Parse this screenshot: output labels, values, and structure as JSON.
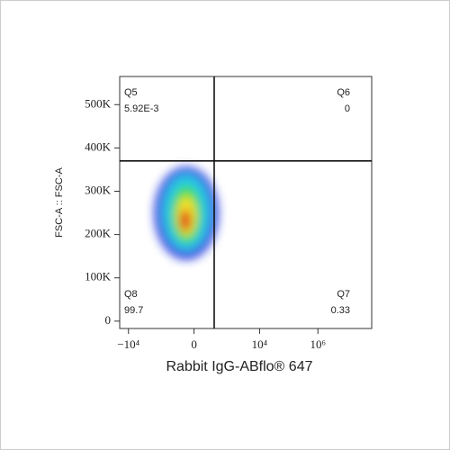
{
  "chart_data": {
    "type": "scatter",
    "xlabel": "Rabbit IgG-ABflo® 647",
    "ylabel": "FSC-A :: FSC-A",
    "xscale": "asinh",
    "xlim": [
      -20000,
      70000000
    ],
    "xticks": [
      {
        "value": -10000,
        "label": "−10⁴"
      },
      0,
      {
        "value": 10000,
        "label": "10⁴"
      },
      {
        "value": 1000000,
        "label": "10⁶"
      }
    ],
    "ylim": [
      -17000,
      565000
    ],
    "yticks": [
      0,
      {
        "value": 100000,
        "label": "100K"
      },
      {
        "value": 200000,
        "label": "200K"
      },
      {
        "value": 300000,
        "label": "300K"
      },
      {
        "value": 400000,
        "label": "400K"
      },
      {
        "value": 500000,
        "label": "500K"
      }
    ],
    "gate_x": 266,
    "gate_y": 370000,
    "quadrants": [
      {
        "name": "Q5",
        "value": "5.92E-3",
        "corner": "top-left"
      },
      {
        "name": "Q6",
        "value": "0",
        "corner": "top-right"
      },
      {
        "name": "Q7",
        "value": "0.33",
        "corner": "bottom-right"
      },
      {
        "name": "Q8",
        "value": "99.7",
        "corner": "bottom-left"
      }
    ]
  }
}
